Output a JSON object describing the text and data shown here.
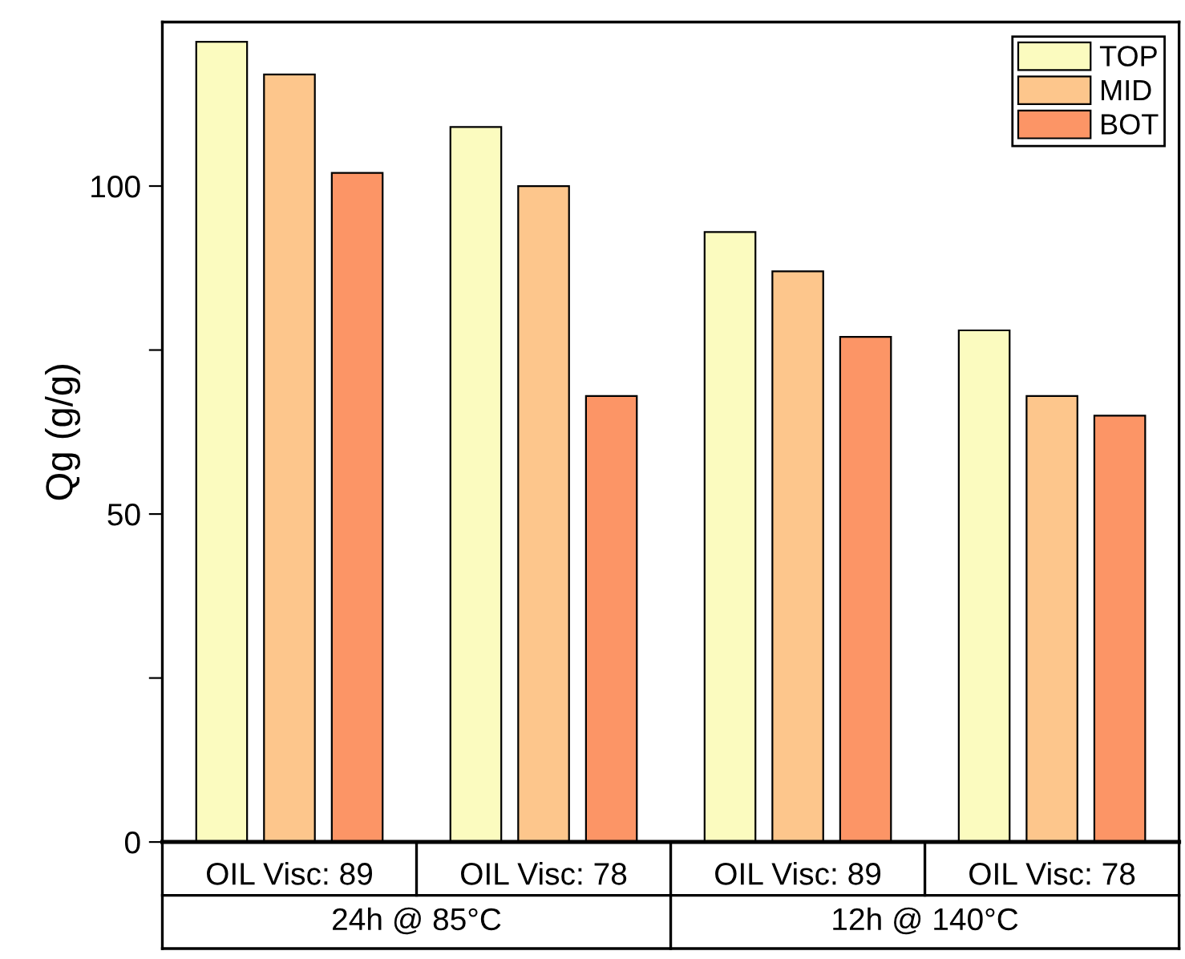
{
  "chart_data": {
    "type": "bar",
    "ylabel": "Qg (g/g)",
    "categories": [
      "OIL Visc: 89",
      "OIL Visc: 78",
      "OIL Visc: 89",
      "OIL Visc: 78"
    ],
    "series": [
      {
        "name": "TOP",
        "color": "#fbfbbf",
        "values": [
          122,
          109,
          93,
          78
        ]
      },
      {
        "name": "MID",
        "color": "#fdc68c",
        "values": [
          117,
          100,
          87,
          68
        ]
      },
      {
        "name": "BOT",
        "color": "#fc9566",
        "values": [
          102,
          68,
          77,
          65
        ]
      }
    ],
    "annotations": [
      "24h @ 85°C",
      "12h @ 140°C"
    ],
    "ylim": [
      0,
      125
    ],
    "yticks": [
      0,
      {
        "value": 25,
        "label": null
      },
      50,
      {
        "value": 75,
        "label": null
      },
      100
    ],
    "legend": "top right",
    "grid": false
  }
}
